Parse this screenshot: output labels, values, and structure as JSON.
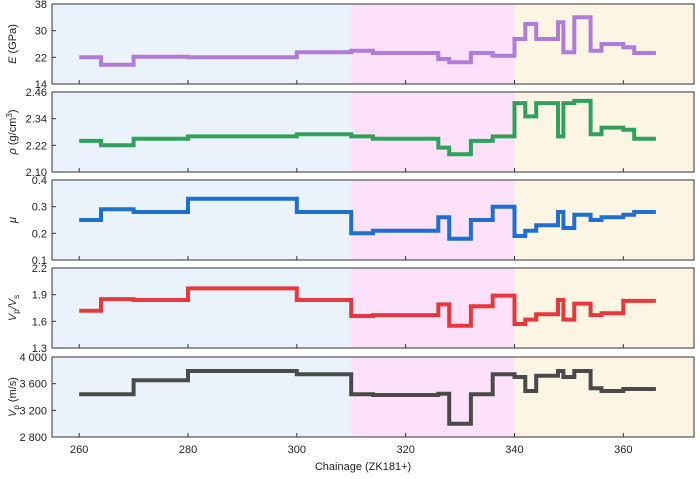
{
  "chart_data": {
    "type": "line",
    "description_note": "",
    "xlabel": "Chainage (ZK181+)",
    "x_ticks": [
      "260",
      "280",
      "300",
      "320",
      "340",
      "360"
    ],
    "xlim": [
      255,
      373
    ],
    "zones": [
      {
        "x0": 255,
        "x1": 310,
        "color": "#eaf2fc"
      },
      {
        "x0": 310,
        "x1": 340,
        "color": "#fde1fb"
      },
      {
        "x0": 340,
        "x1": 373,
        "color": "#fdf5e4"
      }
    ],
    "panels": [
      {
        "ylabel": "E (GPa)",
        "ylabel_main": "E",
        "ylabel_unit": " (GPa)",
        "ylim": [
          14,
          38
        ],
        "y_ticks": [
          14,
          22,
          30,
          38
        ],
        "y_tick_labels": [
          "14",
          "22",
          "30",
          "38"
        ],
        "color": "#b07bdb",
        "x": [
          260,
          264,
          264,
          270,
          270,
          280,
          280,
          300,
          300,
          310,
          310,
          314,
          314,
          326,
          326,
          328,
          328,
          332,
          332,
          336,
          336,
          340,
          340,
          342,
          342,
          344,
          344,
          348,
          348,
          349,
          349,
          351,
          351,
          354,
          354,
          356,
          356,
          360,
          360,
          362,
          362,
          366
        ],
        "y": [
          22.0,
          22.0,
          19.8,
          19.8,
          22.2,
          22.2,
          22.0,
          22.0,
          23.5,
          23.5,
          24.0,
          24.0,
          23.3,
          23.3,
          21.5,
          21.5,
          20.5,
          20.5,
          23.3,
          23.3,
          22.5,
          22.5,
          27.5,
          27.5,
          32.0,
          32.0,
          27.5,
          27.5,
          32.5,
          32.5,
          23.5,
          23.5,
          34.0,
          34.0,
          24.0,
          24.0,
          26.0,
          26.0,
          25.0,
          25.0,
          23.3,
          23.3
        ]
      },
      {
        "ylabel": "ρ (g/cm³)",
        "ylabel_main": "ρ",
        "ylabel_unit": " (g/cm",
        "ylabel_sup": "3",
        "ylabel_close": ")",
        "ylim": [
          2.1,
          2.46
        ],
        "y_ticks": [
          2.1,
          2.22,
          2.34,
          2.46
        ],
        "y_tick_labels": [
          "2.10",
          "2.22",
          "2.34",
          "2.46"
        ],
        "color": "#2ea25a",
        "x": [
          260,
          264,
          264,
          270,
          270,
          280,
          280,
          300,
          300,
          310,
          310,
          314,
          314,
          326,
          326,
          328,
          328,
          332,
          332,
          336,
          336,
          340,
          340,
          342,
          342,
          344,
          344,
          348,
          348,
          349,
          349,
          351,
          351,
          354,
          354,
          356,
          356,
          360,
          360,
          362,
          362,
          366
        ],
        "y": [
          2.24,
          2.24,
          2.22,
          2.22,
          2.25,
          2.25,
          2.26,
          2.26,
          2.27,
          2.27,
          2.26,
          2.26,
          2.25,
          2.25,
          2.21,
          2.21,
          2.18,
          2.18,
          2.24,
          2.24,
          2.26,
          2.26,
          2.41,
          2.41,
          2.35,
          2.35,
          2.41,
          2.41,
          2.26,
          2.26,
          2.41,
          2.41,
          2.42,
          2.42,
          2.27,
          2.27,
          2.3,
          2.3,
          2.29,
          2.29,
          2.25,
          2.25
        ]
      },
      {
        "ylabel": "μ",
        "ylabel_main": "μ",
        "ylabel_unit": "",
        "ylim": [
          0.1,
          0.4
        ],
        "y_ticks": [
          0.1,
          0.2,
          0.3,
          0.4
        ],
        "y_tick_labels": [
          "0.1",
          "0.2",
          "0.3",
          "0.4"
        ],
        "color": "#1f6fd1",
        "x": [
          260,
          264,
          264,
          270,
          270,
          280,
          280,
          300,
          300,
          310,
          310,
          314,
          314,
          326,
          326,
          328,
          328,
          332,
          332,
          336,
          336,
          340,
          340,
          342,
          342,
          344,
          344,
          348,
          348,
          349,
          349,
          351,
          351,
          354,
          354,
          356,
          356,
          360,
          360,
          362,
          362,
          366
        ],
        "y": [
          0.25,
          0.25,
          0.29,
          0.29,
          0.28,
          0.28,
          0.33,
          0.33,
          0.28,
          0.28,
          0.2,
          0.2,
          0.21,
          0.21,
          0.26,
          0.26,
          0.18,
          0.18,
          0.25,
          0.25,
          0.3,
          0.3,
          0.19,
          0.19,
          0.21,
          0.21,
          0.23,
          0.23,
          0.28,
          0.28,
          0.22,
          0.22,
          0.27,
          0.27,
          0.25,
          0.25,
          0.26,
          0.26,
          0.27,
          0.27,
          0.28,
          0.28
        ]
      },
      {
        "ylabel": "Vp/Vs",
        "ylabel_main": "V",
        "ylabel_sub1": "p",
        "ylabel_mid": "/V",
        "ylabel_sub2": "s",
        "ylim": [
          1.3,
          2.2
        ],
        "y_ticks": [
          1.3,
          1.6,
          1.9,
          2.2
        ],
        "y_tick_labels": [
          "1.3",
          "1.6",
          "1.9",
          "2.2"
        ],
        "color": "#e8383c",
        "x": [
          260,
          264,
          264,
          270,
          270,
          280,
          280,
          300,
          300,
          310,
          310,
          314,
          314,
          326,
          326,
          328,
          328,
          332,
          332,
          336,
          336,
          340,
          340,
          342,
          342,
          344,
          344,
          348,
          348,
          349,
          349,
          351,
          351,
          354,
          354,
          356,
          356,
          360,
          360,
          362,
          362,
          366
        ],
        "y": [
          1.72,
          1.72,
          1.85,
          1.85,
          1.84,
          1.84,
          1.97,
          1.97,
          1.84,
          1.84,
          1.66,
          1.66,
          1.67,
          1.67,
          1.79,
          1.79,
          1.55,
          1.55,
          1.77,
          1.77,
          1.89,
          1.89,
          1.57,
          1.57,
          1.62,
          1.62,
          1.68,
          1.68,
          1.84,
          1.84,
          1.62,
          1.62,
          1.8,
          1.8,
          1.67,
          1.67,
          1.69,
          1.69,
          1.83,
          1.83,
          1.83,
          1.83
        ]
      },
      {
        "ylabel": "Vp (m/s)",
        "ylabel_main": "V",
        "ylabel_sub1": "p",
        "ylabel_unit": " (m/s)",
        "ylim": [
          2800,
          4000
        ],
        "y_ticks": [
          2800,
          3200,
          3600,
          4000
        ],
        "y_tick_labels": [
          "2 800",
          "3 200",
          "3 600",
          "4 000"
        ],
        "color": "#4a4a4a",
        "x": [
          260,
          264,
          264,
          270,
          270,
          280,
          280,
          300,
          300,
          310,
          310,
          314,
          314,
          326,
          326,
          328,
          328,
          332,
          332,
          336,
          336,
          340,
          340,
          342,
          342,
          344,
          344,
          348,
          348,
          349,
          349,
          351,
          351,
          354,
          354,
          356,
          356,
          360,
          360,
          362,
          362,
          366
        ],
        "y": [
          3440,
          3440,
          3440,
          3440,
          3650,
          3650,
          3790,
          3790,
          3740,
          3740,
          3440,
          3440,
          3430,
          3430,
          3450,
          3450,
          3000,
          3000,
          3440,
          3440,
          3740,
          3740,
          3700,
          3700,
          3490,
          3490,
          3720,
          3720,
          3790,
          3790,
          3700,
          3700,
          3790,
          3790,
          3530,
          3530,
          3490,
          3490,
          3520,
          3520,
          3520,
          3520
        ]
      }
    ]
  }
}
